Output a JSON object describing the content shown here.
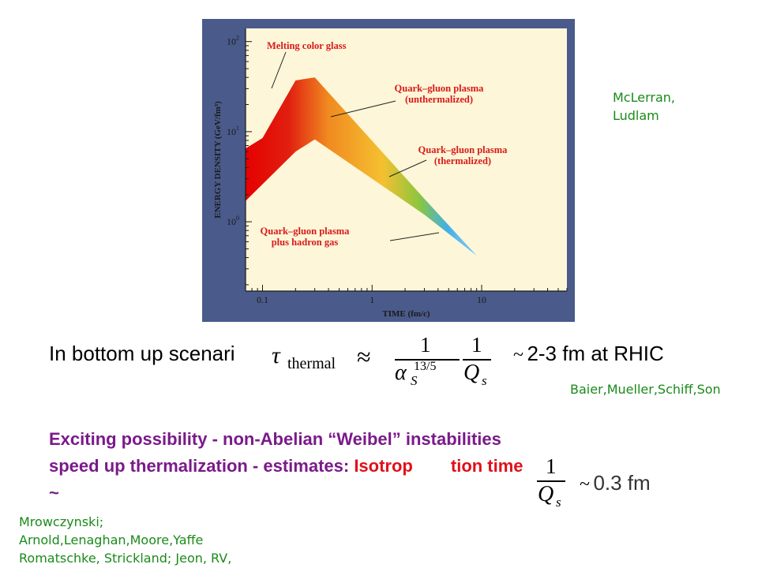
{
  "chart_data": {
    "type": "area",
    "title": "",
    "xlabel": "TIME (fm/c)",
    "ylabel": "ENERGY DENSITY (GeV/fm³)",
    "xscale": "log",
    "yscale": "log",
    "xlim": [
      0.07,
      60
    ],
    "ylim": [
      0.17,
      140
    ],
    "xticks": [
      {
        "value": 0.1,
        "label": "0.1"
      },
      {
        "value": 1,
        "label": "1"
      },
      {
        "value": 10,
        "label": "10"
      }
    ],
    "yticks": [
      {
        "value": 100,
        "base": "10",
        "exp": "2"
      },
      {
        "value": 10,
        "base": "10",
        "exp": "1"
      },
      {
        "value": 1,
        "base": "10",
        "exp": "0"
      }
    ],
    "band_upper": [
      {
        "x": 0.07,
        "y": 6.5
      },
      {
        "x": 0.1,
        "y": 8.5
      },
      {
        "x": 0.2,
        "y": 37
      },
      {
        "x": 0.3,
        "y": 40
      },
      {
        "x": 3,
        "y": 1.8
      },
      {
        "x": 9,
        "y": 0.42
      }
    ],
    "band_lower": [
      {
        "x": 0.07,
        "y": 1.7
      },
      {
        "x": 0.2,
        "y": 6.0
      },
      {
        "x": 0.3,
        "y": 8.2
      },
      {
        "x": 3,
        "y": 1.2
      },
      {
        "x": 9,
        "y": 0.42
      }
    ],
    "regions": [
      {
        "label": [
          "Melting color glass"
        ],
        "color": "#e60000",
        "from_x": 0.07,
        "to_x": 0.3
      },
      {
        "label": [
          "Quark–gluon plasma",
          "(unthermalized)"
        ],
        "color": "#f5a020",
        "from_x": 0.3,
        "to_x": 1.4
      },
      {
        "label": [
          "Quark–gluon plasma",
          "(thermalized)"
        ],
        "color": "#8cc63f",
        "from_x": 1.4,
        "to_x": 3.5
      },
      {
        "label": [
          "Quark–gluon plasma",
          "plus hadron gas"
        ],
        "color": "#40b0e8",
        "from_x": 3.5,
        "to_x": 9
      }
    ],
    "colors": {
      "background": "#fdf6d8",
      "frame": "#4a5a8a",
      "labels": "#d81a1a",
      "axis": "#1a1a1a"
    }
  },
  "credits": {
    "mclerran": [
      "McLerran,",
      "Ludlam"
    ],
    "baier": "Baier,Mueller,Schiff,Son",
    "mrow": [
      "Mrowczynski;",
      "Arnold,Lenaghan,Moore,Yaffe",
      "Romatschke, Strickland; Jeon, RV,"
    ]
  },
  "bottom_up": {
    "intro": "In bottom up scenari",
    "tilde": "~",
    "estimate": "2-3 fm at RHIC"
  },
  "formula1": {
    "tau": "τ",
    "sub": "thermal",
    "approx": "≈",
    "one": "1",
    "alpha": "α",
    "s": "S",
    "exp": "13/5",
    "q": "Q",
    "qs": "s"
  },
  "exciting": {
    "line1": "Exciting possibility - non-Abelian “Weibel” instabilities",
    "line2_a": "speed up thermalization - estimates: ",
    "line2_b": "Isotrop",
    "line2_c": "tion time",
    "line3": "~"
  },
  "formula2": {
    "one": "1",
    "q": "Q",
    "qs": "s",
    "tilde": "~",
    "estimate": "0.3 fm"
  }
}
